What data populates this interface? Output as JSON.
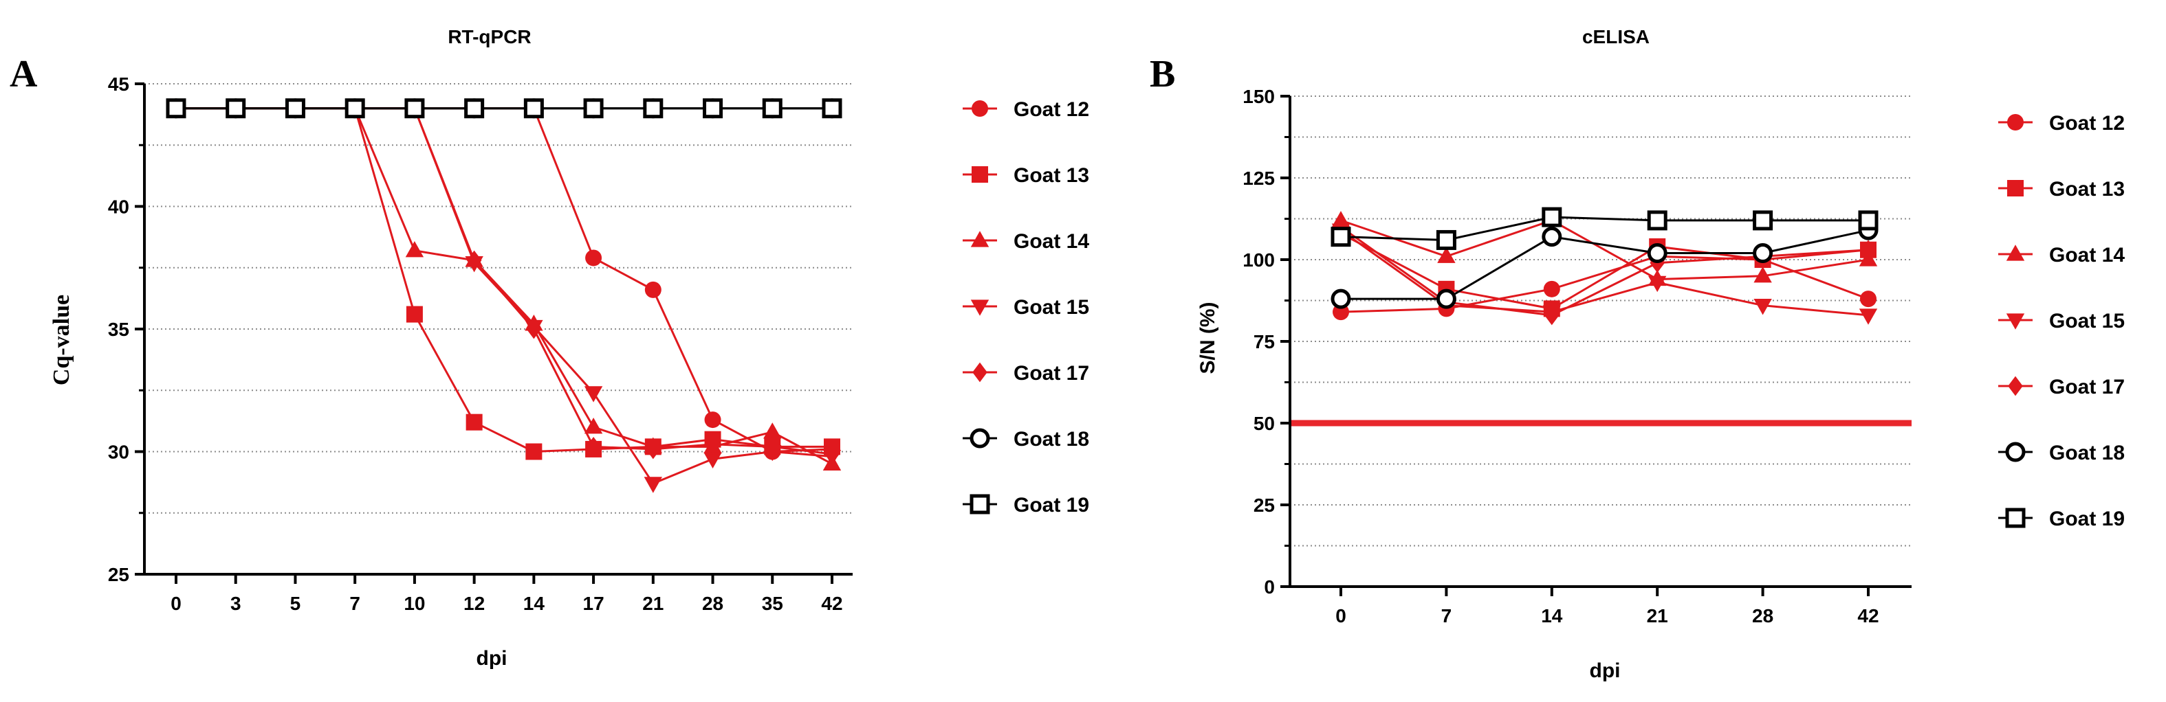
{
  "colors": {
    "red": "#e0191e",
    "black": "#000000",
    "grid": "#8a8a8a",
    "threshold": "#e8272c"
  },
  "chart_data": [
    {
      "panel": "A",
      "type": "line",
      "title": "RT-qPCR",
      "xlabel": "dpi",
      "ylabel": "Cq-value",
      "x_scale": "categorical",
      "categories": [
        "0",
        "3",
        "5",
        "7",
        "10",
        "12",
        "14",
        "17",
        "21",
        "28",
        "35",
        "42"
      ],
      "ylim": [
        25,
        45
      ],
      "yticks": [
        25,
        30,
        35,
        40,
        45
      ],
      "grid": "horizontal dotted",
      "legend_position": "right",
      "series": [
        {
          "name": "Goat 12",
          "marker": "circle",
          "color": "red",
          "values": [
            44,
            44,
            44,
            44,
            44,
            44,
            44,
            37.9,
            36.6,
            31.3,
            30.0,
            30.1
          ]
        },
        {
          "name": "Goat 13",
          "marker": "square",
          "color": "red",
          "values": [
            44,
            44,
            44,
            44,
            35.6,
            31.2,
            30.0,
            30.1,
            30.2,
            30.5,
            30.2,
            30.2
          ]
        },
        {
          "name": "Goat 14",
          "marker": "triangle-up",
          "color": "red",
          "values": [
            44,
            44,
            44,
            44,
            38.2,
            37.8,
            35.2,
            31.0,
            30.2,
            30.2,
            30.8,
            29.5
          ]
        },
        {
          "name": "Goat 15",
          "marker": "triangle-down",
          "color": "red",
          "values": [
            44,
            44,
            44,
            44,
            44,
            37.7,
            35.1,
            32.4,
            28.7,
            29.7,
            30.0,
            29.8
          ]
        },
        {
          "name": "Goat 17",
          "marker": "diamond",
          "color": "red",
          "values": [
            44,
            44,
            44,
            44,
            44,
            37.8,
            35.0,
            30.2,
            30.1,
            30.3,
            30.2,
            29.9
          ]
        },
        {
          "name": "Goat 18",
          "marker": "circle-open",
          "color": "black",
          "values": [
            44,
            44,
            44,
            44,
            44,
            44,
            44,
            44,
            44,
            44,
            44,
            44
          ]
        },
        {
          "name": "Goat 19",
          "marker": "square-open",
          "color": "black",
          "values": [
            44,
            44,
            44,
            44,
            44,
            44,
            44,
            44,
            44,
            44,
            44,
            44
          ]
        }
      ]
    },
    {
      "panel": "B",
      "type": "line",
      "title": "cELISA",
      "xlabel": "dpi",
      "ylabel": "S/N (%)",
      "x_scale": "categorical",
      "categories": [
        "0",
        "7",
        "14",
        "21",
        "28",
        "42"
      ],
      "ylim": [
        0,
        150
      ],
      "yticks": [
        0,
        25,
        50,
        75,
        100,
        125,
        150
      ],
      "grid": "horizontal dotted",
      "threshold": 50,
      "legend_position": "right",
      "series": [
        {
          "name": "Goat 12",
          "marker": "circle",
          "color": "red",
          "values": [
            84,
            85,
            91,
            101,
            100,
            88
          ]
        },
        {
          "name": "Goat 13",
          "marker": "square",
          "color": "red",
          "values": [
            108,
            91,
            85,
            104,
            100,
            103
          ]
        },
        {
          "name": "Goat 14",
          "marker": "triangle-up",
          "color": "red",
          "values": [
            112,
            101,
            112,
            94,
            95,
            100
          ]
        },
        {
          "name": "Goat 15",
          "marker": "triangle-down",
          "color": "red",
          "values": [
            109,
            86,
            84,
            93,
            86,
            83
          ]
        },
        {
          "name": "Goat 17",
          "marker": "diamond",
          "color": "red",
          "values": [
            110,
            87,
            83,
            99,
            101,
            103
          ]
        },
        {
          "name": "Goat 18",
          "marker": "circle-open",
          "color": "black",
          "values": [
            88,
            88,
            107,
            102,
            102,
            109
          ]
        },
        {
          "name": "Goat 19",
          "marker": "square-open",
          "color": "black",
          "values": [
            107,
            106,
            113,
            112,
            112,
            112
          ]
        }
      ]
    }
  ]
}
